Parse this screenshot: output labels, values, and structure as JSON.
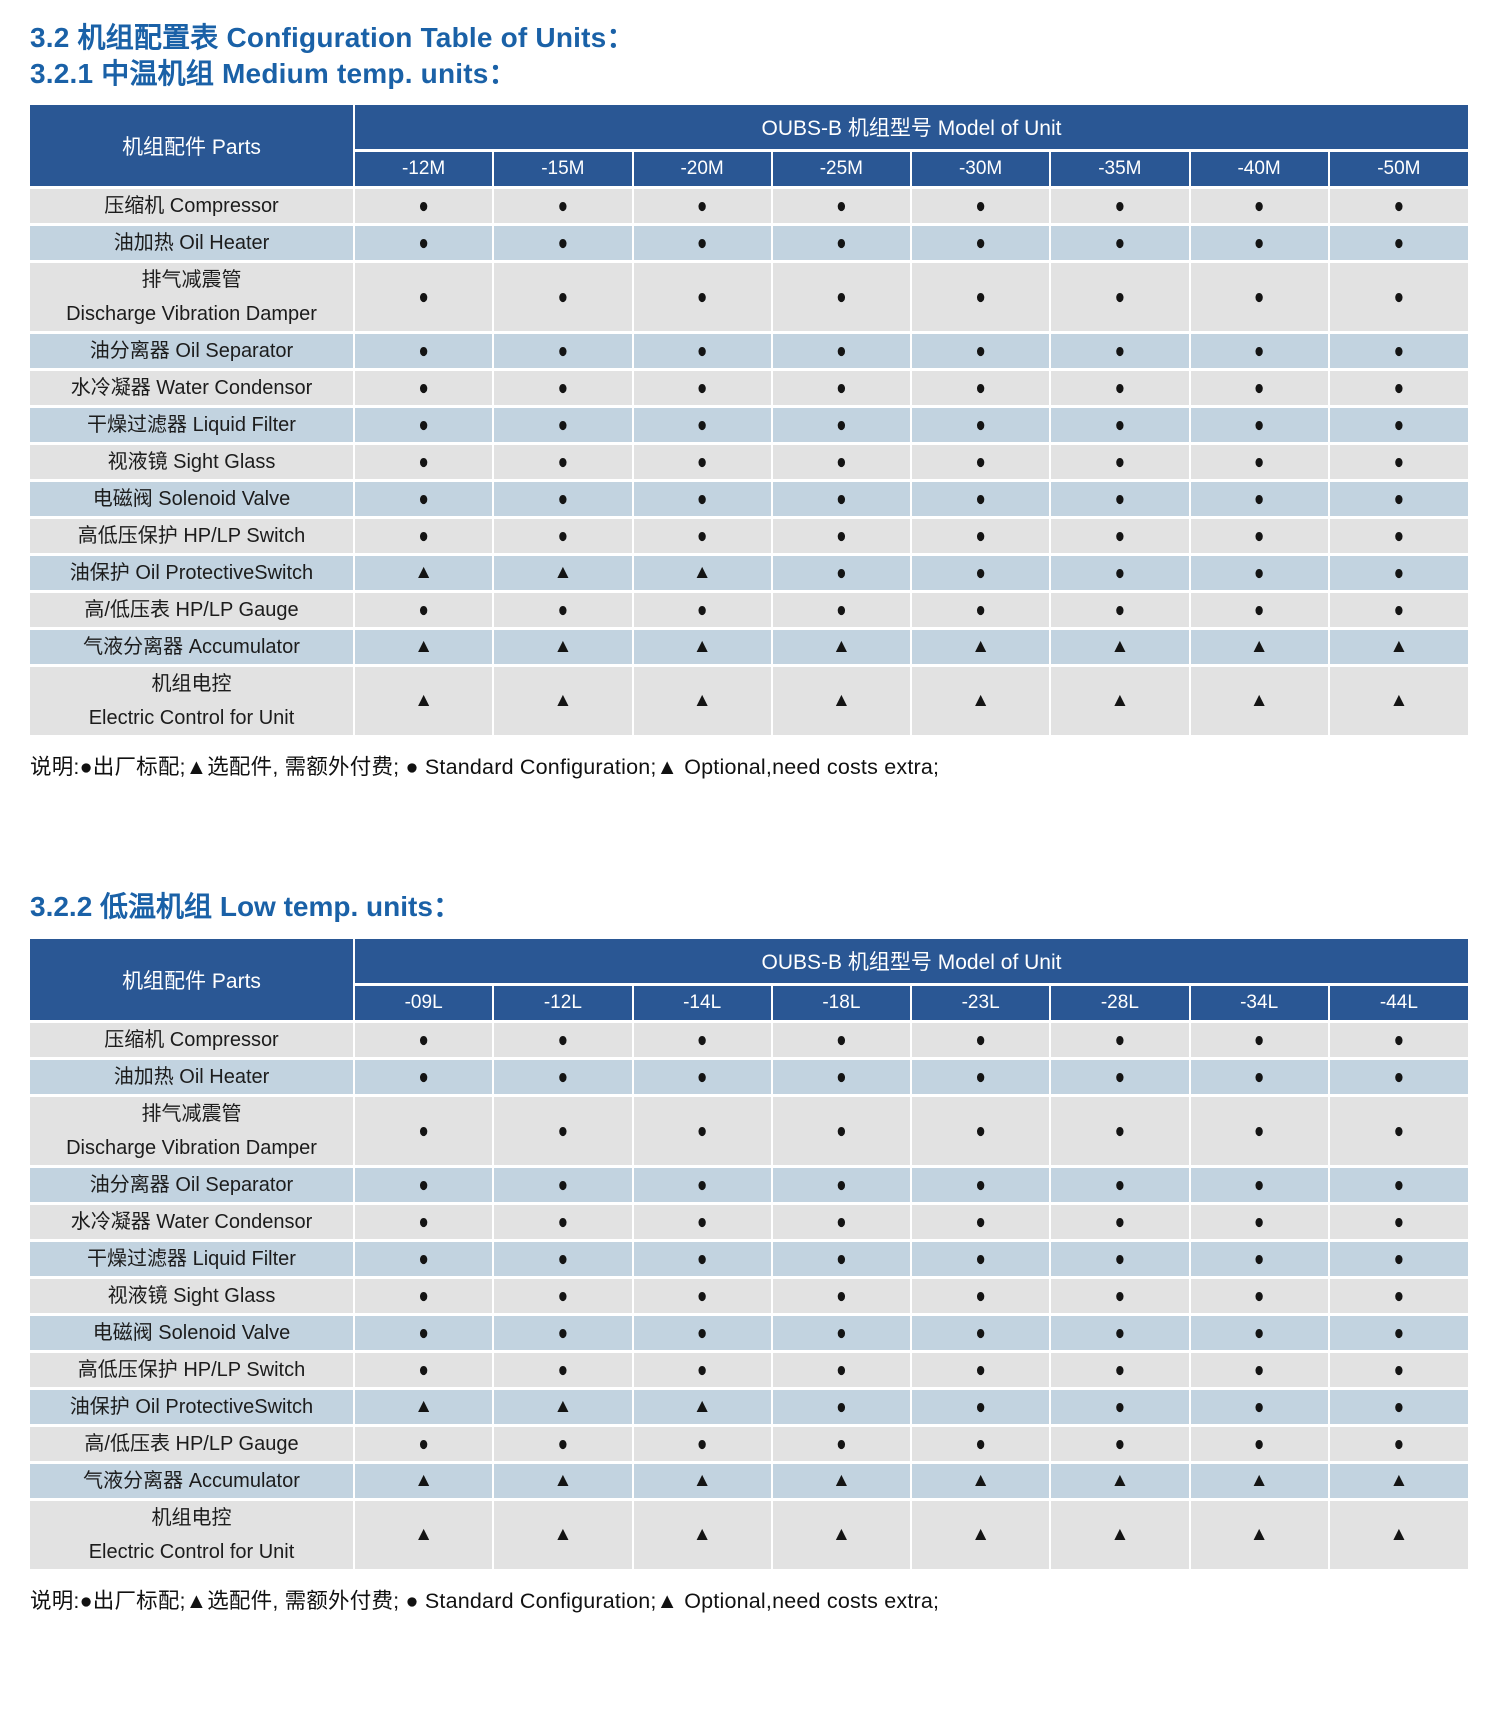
{
  "page_title": {
    "line1": "3.2 机组配置表 Configuration Table of Units：",
    "line2": "3.2.1 中温机组 Medium temp. units："
  },
  "section2_title": "3.2.2 低温机组 Low temp. units：",
  "note": "说明:●出厂标配;▲选配件, 需额外付费; ● Standard Configuration;▲ Optional,need costs extra;",
  "symbols": {
    "std": "●",
    "opt": "▲"
  },
  "colors": {
    "header_blue": "#2a5794",
    "row_gray": "#e2e2e2",
    "row_blue": "#c2d3e0",
    "title_blue": "#1a61a7",
    "symbol_black": "#141414"
  },
  "tables": [
    {
      "parts_header": "机组配件 Parts",
      "model_header": "OUBS-B 机组型号 Model of Unit",
      "models": [
        "-12M",
        "-15M",
        "-20M",
        "-25M",
        "-30M",
        "-35M",
        "-40M",
        "-50M"
      ],
      "rows": [
        {
          "lines": [
            "压缩机 Compressor"
          ],
          "cells": [
            "std",
            "std",
            "std",
            "std",
            "std",
            "std",
            "std",
            "std"
          ]
        },
        {
          "lines": [
            "油加热 Oil Heater"
          ],
          "cells": [
            "std",
            "std",
            "std",
            "std",
            "std",
            "std",
            "std",
            "std"
          ]
        },
        {
          "lines": [
            "排气减震管",
            "Discharge Vibration Damper"
          ],
          "cells": [
            "std",
            "std",
            "std",
            "std",
            "std",
            "std",
            "std",
            "std"
          ]
        },
        {
          "lines": [
            "油分离器 Oil Separator"
          ],
          "cells": [
            "std",
            "std",
            "std",
            "std",
            "std",
            "std",
            "std",
            "std"
          ]
        },
        {
          "lines": [
            "水冷凝器 Water Condensor"
          ],
          "cells": [
            "std",
            "std",
            "std",
            "std",
            "std",
            "std",
            "std",
            "std"
          ]
        },
        {
          "lines": [
            "干燥过滤器  Liquid Filter"
          ],
          "cells": [
            "std",
            "std",
            "std",
            "std",
            "std",
            "std",
            "std",
            "std"
          ]
        },
        {
          "lines": [
            "视液镜 Sight Glass"
          ],
          "cells": [
            "std",
            "std",
            "std",
            "std",
            "std",
            "std",
            "std",
            "std"
          ]
        },
        {
          "lines": [
            "电磁阀 Solenoid Valve"
          ],
          "cells": [
            "std",
            "std",
            "std",
            "std",
            "std",
            "std",
            "std",
            "std"
          ]
        },
        {
          "lines": [
            "高低压保护 HP/LP Switch"
          ],
          "cells": [
            "std",
            "std",
            "std",
            "std",
            "std",
            "std",
            "std",
            "std"
          ]
        },
        {
          "lines": [
            "油保护 Oil ProtectiveSwitch"
          ],
          "cells": [
            "opt",
            "opt",
            "opt",
            "std",
            "std",
            "std",
            "std",
            "std"
          ]
        },
        {
          "lines": [
            "高/低压表 HP/LP Gauge"
          ],
          "cells": [
            "std",
            "std",
            "std",
            "std",
            "std",
            "std",
            "std",
            "std"
          ]
        },
        {
          "lines": [
            "气液分离器 Accumulator"
          ],
          "cells": [
            "opt",
            "opt",
            "opt",
            "opt",
            "opt",
            "opt",
            "opt",
            "opt"
          ]
        },
        {
          "lines": [
            "机组电控",
            "Electric Control for Unit"
          ],
          "cells": [
            "opt",
            "opt",
            "opt",
            "opt",
            "opt",
            "opt",
            "opt",
            "opt"
          ]
        }
      ]
    },
    {
      "parts_header": "机组配件 Parts",
      "model_header": "OUBS-B 机组型号 Model of Unit",
      "models": [
        "-09L",
        "-12L",
        "-14L",
        "-18L",
        "-23L",
        "-28L",
        "-34L",
        "-44L"
      ],
      "rows": [
        {
          "lines": [
            "压缩机 Compressor"
          ],
          "cells": [
            "std",
            "std",
            "std",
            "std",
            "std",
            "std",
            "std",
            "std"
          ]
        },
        {
          "lines": [
            "油加热 Oil Heater"
          ],
          "cells": [
            "std",
            "std",
            "std",
            "std",
            "std",
            "std",
            "std",
            "std"
          ]
        },
        {
          "lines": [
            "排气减震管",
            "Discharge Vibration Damper"
          ],
          "cells": [
            "std",
            "std",
            "std",
            "std",
            "std",
            "std",
            "std",
            "std"
          ]
        },
        {
          "lines": [
            "油分离器 Oil Separator"
          ],
          "cells": [
            "std",
            "std",
            "std",
            "std",
            "std",
            "std",
            "std",
            "std"
          ]
        },
        {
          "lines": [
            "水冷凝器 Water Condensor"
          ],
          "cells": [
            "std",
            "std",
            "std",
            "std",
            "std",
            "std",
            "std",
            "std"
          ]
        },
        {
          "lines": [
            "干燥过滤器  Liquid Filter"
          ],
          "cells": [
            "std",
            "std",
            "std",
            "std",
            "std",
            "std",
            "std",
            "std"
          ]
        },
        {
          "lines": [
            "视液镜 Sight Glass"
          ],
          "cells": [
            "std",
            "std",
            "std",
            "std",
            "std",
            "std",
            "std",
            "std"
          ]
        },
        {
          "lines": [
            "电磁阀 Solenoid Valve"
          ],
          "cells": [
            "std",
            "std",
            "std",
            "std",
            "std",
            "std",
            "std",
            "std"
          ]
        },
        {
          "lines": [
            "高低压保护 HP/LP Switch"
          ],
          "cells": [
            "std",
            "std",
            "std",
            "std",
            "std",
            "std",
            "std",
            "std"
          ]
        },
        {
          "lines": [
            "油保护 Oil ProtectiveSwitch"
          ],
          "cells": [
            "opt",
            "opt",
            "opt",
            "std",
            "std",
            "std",
            "std",
            "std"
          ]
        },
        {
          "lines": [
            "高/低压表 HP/LP Gauge"
          ],
          "cells": [
            "std",
            "std",
            "std",
            "std",
            "std",
            "std",
            "std",
            "std"
          ]
        },
        {
          "lines": [
            "气液分离器 Accumulator"
          ],
          "cells": [
            "opt",
            "opt",
            "opt",
            "opt",
            "opt",
            "opt",
            "opt",
            "opt"
          ]
        },
        {
          "lines": [
            "机组电控",
            "Electric Control for Unit"
          ],
          "cells": [
            "opt",
            "opt",
            "opt",
            "opt",
            "opt",
            "opt",
            "opt",
            "opt"
          ]
        }
      ]
    }
  ]
}
